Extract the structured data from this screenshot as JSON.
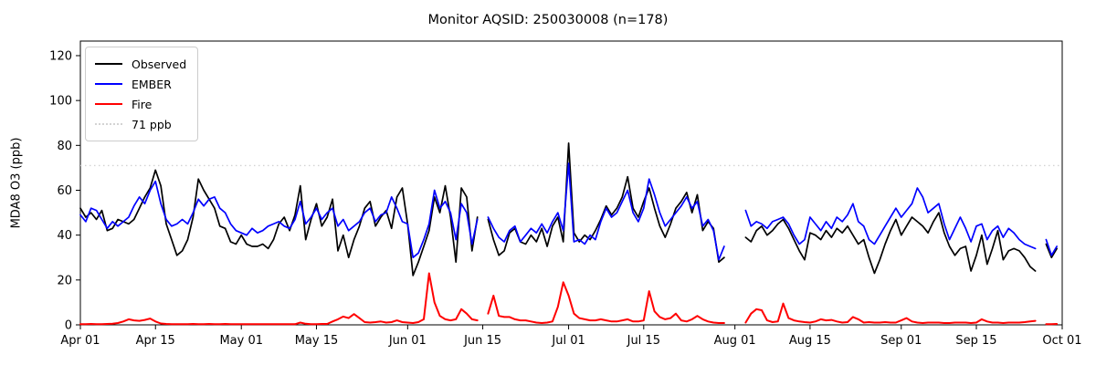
{
  "chart_data": {
    "type": "line",
    "title": "Monitor AQSID: 250030008 (n=178)",
    "ylabel": "MDA8 O3 (ppb)",
    "xlabel": "",
    "ylim": [
      0,
      126.5
    ],
    "yticks": [
      0,
      20,
      40,
      60,
      80,
      100,
      120
    ],
    "xlim": [
      0,
      183
    ],
    "x_unit": "days since Apr 01",
    "xticks": [
      {
        "pos": 0,
        "label": "Apr 01"
      },
      {
        "pos": 14,
        "label": "Apr 15"
      },
      {
        "pos": 30,
        "label": "May 01"
      },
      {
        "pos": 44,
        "label": "May 15"
      },
      {
        "pos": 61,
        "label": "Jun 01"
      },
      {
        "pos": 75,
        "label": "Jun 15"
      },
      {
        "pos": 91,
        "label": "Jul 01"
      },
      {
        "pos": 105,
        "label": "Jul 15"
      },
      {
        "pos": 122,
        "label": "Aug 01"
      },
      {
        "pos": 136,
        "label": "Aug 15"
      },
      {
        "pos": 153,
        "label": "Sep 01"
      },
      {
        "pos": 167,
        "label": "Sep 15"
      },
      {
        "pos": 183,
        "label": "Oct 01"
      }
    ],
    "threshold": {
      "value": 71,
      "label": "71 ppb",
      "color": "#d3d3d3",
      "style": "dotted"
    },
    "legend_position": "upper-left",
    "grid": false,
    "series": [
      {
        "name": "Observed",
        "color": "#000000",
        "values": [
          52,
          48,
          50,
          47,
          51,
          42,
          43,
          47,
          46,
          45,
          47,
          52,
          57,
          61,
          69,
          62,
          45,
          38,
          31,
          33,
          38,
          48,
          65,
          60,
          56,
          52,
          44,
          43,
          37,
          36,
          40,
          36,
          35,
          35,
          36,
          34,
          38,
          45,
          48,
          42,
          49,
          62,
          38,
          47,
          54,
          44,
          48,
          56,
          33,
          40,
          30,
          38,
          44,
          52,
          55,
          44,
          48,
          51,
          43,
          57,
          61,
          45,
          22,
          28,
          35,
          42,
          57,
          50,
          62,
          48,
          28,
          61,
          57,
          33,
          48,
          null,
          47,
          38,
          31,
          33,
          41,
          43,
          37,
          36,
          40,
          37,
          43,
          35,
          44,
          48,
          37,
          81,
          41,
          37,
          40,
          38,
          42,
          47,
          53,
          49,
          52,
          57,
          66,
          52,
          48,
          55,
          61,
          52,
          44,
          39,
          45,
          52,
          55,
          59,
          50,
          58,
          42,
          46,
          43,
          28,
          30,
          null,
          null,
          null,
          39,
          37,
          42,
          44,
          40,
          42,
          45,
          47,
          43,
          38,
          33,
          29,
          41,
          40,
          38,
          42,
          39,
          43,
          41,
          44,
          40,
          36,
          38,
          30,
          23,
          29,
          36,
          42,
          47,
          40,
          44,
          48,
          46,
          44,
          41,
          46,
          50,
          41,
          35,
          31,
          34,
          35,
          24,
          31,
          40,
          27,
          34,
          42,
          29,
          33,
          34,
          33,
          30,
          26,
          24,
          null,
          36,
          30,
          34
        ]
      },
      {
        "name": "EMBER",
        "color": "#0000ff",
        "values": [
          49,
          46,
          52,
          51,
          47,
          43,
          46,
          44,
          46,
          48,
          53,
          57,
          54,
          60,
          64,
          54,
          47,
          44,
          45,
          47,
          45,
          50,
          56,
          53,
          56,
          57,
          52,
          50,
          45,
          42,
          41,
          40,
          43,
          41,
          42,
          44,
          45,
          46,
          44,
          43,
          47,
          55,
          45,
          48,
          52,
          47,
          50,
          52,
          44,
          47,
          42,
          44,
          46,
          50,
          52,
          46,
          49,
          50,
          57,
          52,
          46,
          45,
          30,
          32,
          38,
          45,
          60,
          52,
          55,
          50,
          38,
          54,
          50,
          36,
          47,
          null,
          48,
          43,
          39,
          37,
          42,
          44,
          37,
          40,
          43,
          41,
          45,
          41,
          46,
          50,
          42,
          72,
          37,
          38,
          36,
          40,
          38,
          46,
          52,
          48,
          50,
          55,
          60,
          50,
          46,
          52,
          65,
          58,
          50,
          44,
          47,
          50,
          53,
          57,
          52,
          55,
          44,
          47,
          42,
          29,
          35,
          null,
          null,
          null,
          51,
          44,
          46,
          45,
          43,
          46,
          47,
          48,
          45,
          40,
          36,
          38,
          48,
          45,
          42,
          46,
          43,
          48,
          46,
          49,
          54,
          46,
          44,
          38,
          36,
          40,
          44,
          48,
          52,
          48,
          51,
          54,
          61,
          57,
          50,
          52,
          54,
          45,
          38,
          43,
          48,
          43,
          37,
          44,
          45,
          38,
          42,
          44,
          39,
          43,
          41,
          38,
          36,
          35,
          34,
          null,
          38,
          31,
          35
        ]
      },
      {
        "name": "Fire",
        "color": "#ff0000",
        "values": [
          0.3,
          0.3,
          0.4,
          0.3,
          0.3,
          0.4,
          0.5,
          0.8,
          1.5,
          2.5,
          2.0,
          1.8,
          2.2,
          2.8,
          1.5,
          0.6,
          0.4,
          0.3,
          0.3,
          0.3,
          0.3,
          0.4,
          0.3,
          0.3,
          0.4,
          0.3,
          0.3,
          0.4,
          0.3,
          0.3,
          0.3,
          0.3,
          0.3,
          0.3,
          0.3,
          0.3,
          0.3,
          0.3,
          0.3,
          0.3,
          0.3,
          1.0,
          0.5,
          0.3,
          0.3,
          0.4,
          0.4,
          1.5,
          2.5,
          3.7,
          3.0,
          4.8,
          3.0,
          1.2,
          1.0,
          1.2,
          1.5,
          1.0,
          1.2,
          2.0,
          1.2,
          1.0,
          0.8,
          1.2,
          2.5,
          23,
          10,
          4,
          2.5,
          2,
          2.5,
          7,
          5,
          2.5,
          2,
          null,
          5,
          13,
          4,
          3.5,
          3.5,
          2.5,
          2,
          2,
          1.5,
          1,
          0.8,
          1,
          1.5,
          8,
          19,
          13,
          5,
          3,
          2.5,
          2,
          2,
          2.5,
          2,
          1.5,
          1.5,
          2,
          2.5,
          1.5,
          1.5,
          2,
          15,
          6,
          3.5,
          2.5,
          3,
          5,
          2,
          1.5,
          2.5,
          4,
          2.5,
          1.5,
          1,
          0.8,
          0.8,
          null,
          null,
          null,
          1,
          5,
          7,
          6.5,
          2,
          1.2,
          1.5,
          9.5,
          3,
          2,
          1.5,
          1.2,
          1,
          1.5,
          2.5,
          2,
          2.2,
          1.5,
          1,
          1.2,
          3.5,
          2.5,
          1,
          1.2,
          1,
          1,
          1.2,
          1,
          1,
          2,
          3,
          1.5,
          1,
          0.8,
          1,
          1,
          1,
          0.8,
          0.8,
          1,
          1,
          1,
          0.8,
          1,
          2.5,
          1.5,
          1,
          1,
          0.8,
          1,
          1,
          1,
          1.2,
          1.5,
          1.8,
          null,
          0.3,
          0.3,
          0.4
        ]
      }
    ]
  },
  "legend": {
    "item_observed": "Observed",
    "item_ember": "EMBER",
    "item_fire": "Fire",
    "item_threshold": "71 ppb"
  }
}
